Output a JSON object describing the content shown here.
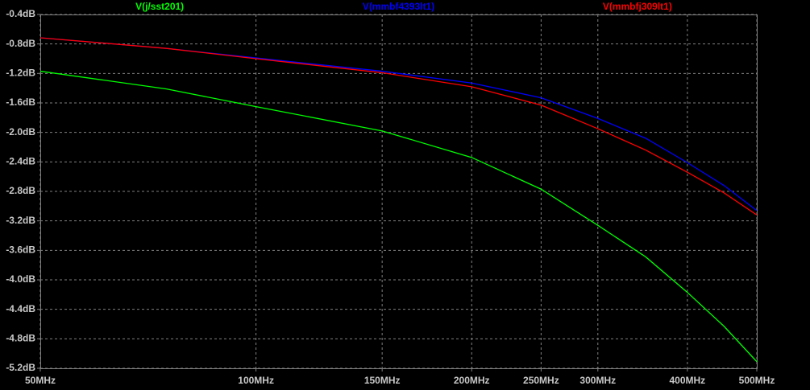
{
  "chart_data": {
    "type": "line",
    "xscale": "log",
    "grid": true,
    "x": [
      50,
      75,
      100,
      150,
      200,
      250,
      300,
      350,
      400,
      450,
      500
    ],
    "series": [
      {
        "name": "V(j/sst201)",
        "color": "#00ff00",
        "values": [
          -1.17,
          -1.41,
          -1.65,
          -1.98,
          -2.34,
          -2.77,
          -3.26,
          -3.69,
          -4.17,
          -4.63,
          -5.11
        ]
      },
      {
        "name": "V(mmbf4393lt1)",
        "color": "#0000ff",
        "values": [
          -0.716,
          -0.86,
          -0.99,
          -1.17,
          -1.33,
          -1.53,
          -1.81,
          -2.08,
          -2.41,
          -2.72,
          -3.06
        ]
      },
      {
        "name": "V(mmbfj309lt1)",
        "color": "#ff0000",
        "values": [
          -0.716,
          -0.86,
          -1.0,
          -1.19,
          -1.38,
          -1.63,
          -1.95,
          -2.24,
          -2.54,
          -2.82,
          -3.12
        ]
      }
    ],
    "xlim": [
      50,
      500
    ],
    "xticks": [
      {
        "value": 50,
        "label": "50MHz"
      },
      {
        "value": 100,
        "label": "100MHz"
      },
      {
        "value": 150,
        "label": "150MHz"
      },
      {
        "value": 200,
        "label": "200MHz"
      },
      {
        "value": 250,
        "label": "250MHz"
      },
      {
        "value": 300,
        "label": "300MHz"
      },
      {
        "value": 400,
        "label": "400MHz"
      },
      {
        "value": 500,
        "label": "500MHz"
      }
    ],
    "ylim": [
      -5.2,
      -0.4
    ],
    "yticks": [
      {
        "value": -0.4,
        "label": "-0.4dB"
      },
      {
        "value": -0.8,
        "label": "-0.8dB"
      },
      {
        "value": -1.2,
        "label": "-1.2dB"
      },
      {
        "value": -1.6,
        "label": "-1.6dB"
      },
      {
        "value": -2.0,
        "label": "-2.0dB"
      },
      {
        "value": -2.4,
        "label": "-2.4dB"
      },
      {
        "value": -2.8,
        "label": "-2.8dB"
      },
      {
        "value": -3.2,
        "label": "-3.2dB"
      },
      {
        "value": -3.6,
        "label": "-3.6dB"
      },
      {
        "value": -4.0,
        "label": "-4.0dB"
      },
      {
        "value": -4.4,
        "label": "-4.4dB"
      },
      {
        "value": -4.8,
        "label": "-4.8dB"
      },
      {
        "value": -5.2,
        "label": "-5.2dB"
      }
    ]
  }
}
